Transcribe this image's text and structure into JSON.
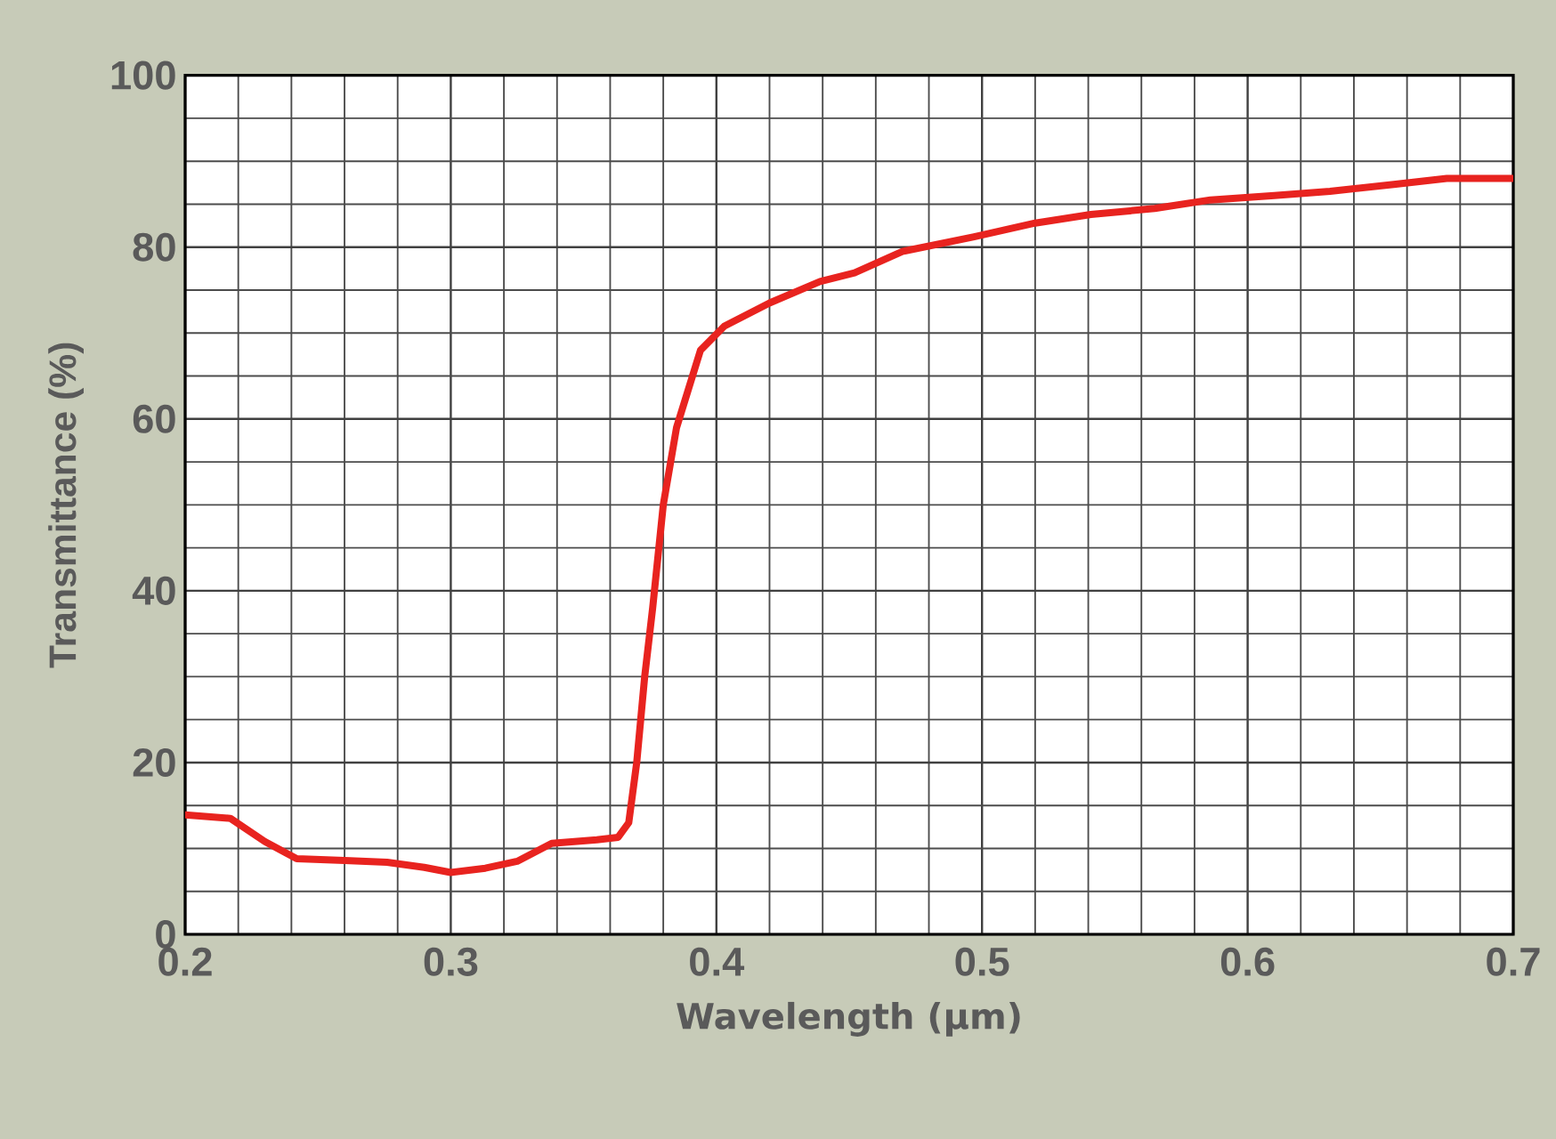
{
  "chart_data": {
    "type": "line",
    "xlabel": "Wavelength (μm)",
    "ylabel": "Transmittance (%)",
    "xlim": [
      0.2,
      0.7
    ],
    "ylim": [
      0,
      100
    ],
    "xticks": [
      0.2,
      0.3,
      0.4,
      0.5,
      0.6,
      0.7
    ],
    "yticks": [
      0,
      20,
      40,
      60,
      80,
      100
    ],
    "grid": true,
    "line_style": "solid",
    "marker": "none",
    "series": [
      {
        "color": "#e8231f",
        "x": [
          0.2,
          0.217,
          0.23,
          0.242,
          0.26,
          0.276,
          0.29,
          0.3,
          0.313,
          0.325,
          0.338,
          0.355,
          0.363,
          0.367,
          0.37,
          0.373,
          0.376,
          0.38,
          0.385,
          0.394,
          0.403,
          0.42,
          0.439,
          0.452,
          0.47,
          0.497,
          0.52,
          0.541,
          0.565,
          0.586,
          0.61,
          0.631,
          0.655,
          0.675,
          0.7
        ],
        "values": [
          13.9,
          13.5,
          10.8,
          8.8,
          8.6,
          8.4,
          7.8,
          7.2,
          7.7,
          8.5,
          10.6,
          11,
          11.3,
          13,
          20,
          30,
          38,
          50,
          59,
          68,
          70.8,
          73.5,
          76,
          77,
          79.5,
          81.2,
          82.8,
          83.8,
          84.5,
          85.5,
          86,
          86.5,
          87.3,
          88,
          88
        ]
      }
    ]
  }
}
